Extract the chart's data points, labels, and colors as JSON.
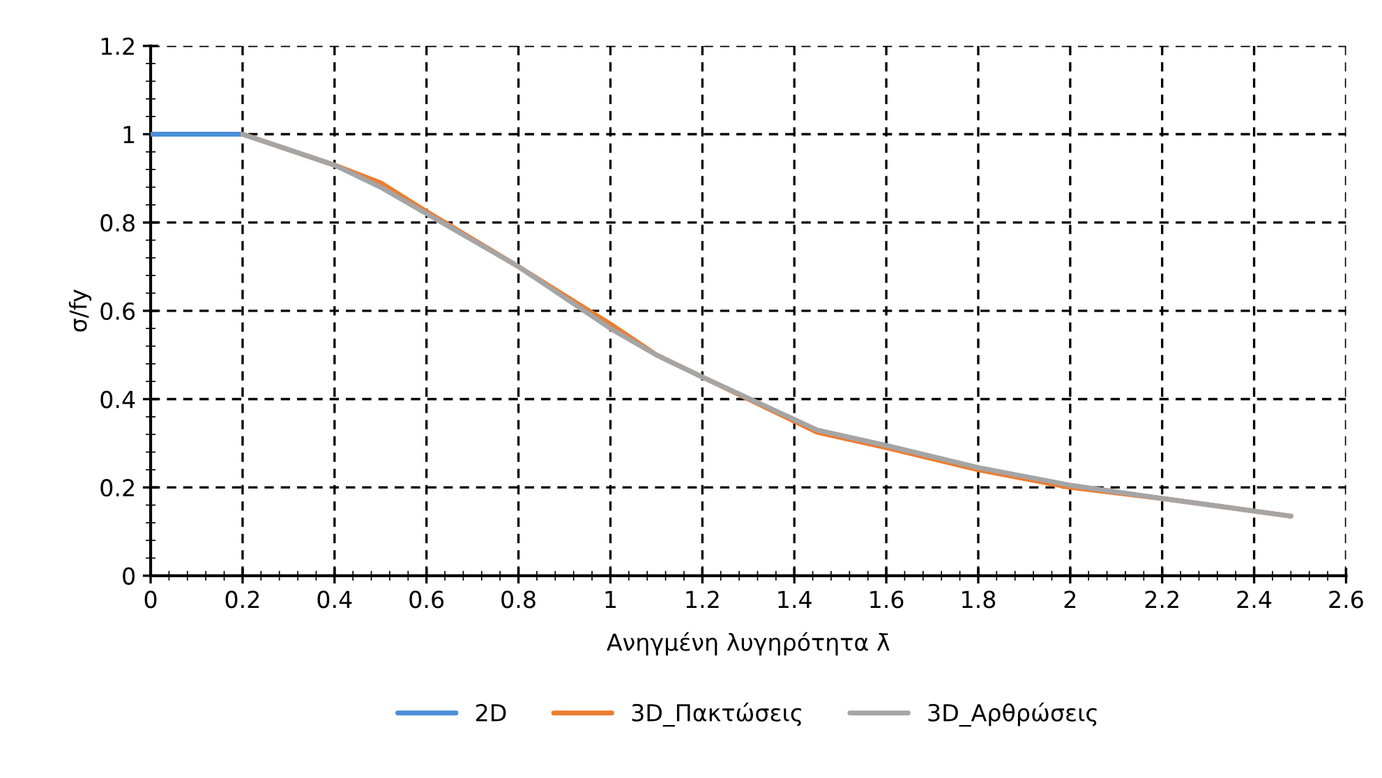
{
  "chart_data": {
    "type": "line",
    "xlabel": "Ανηγμένη λυγηρότητα λ̄",
    "ylabel": "σ/fy",
    "xlim": [
      0,
      2.6
    ],
    "xticks": [
      0,
      0.2,
      0.4,
      0.6,
      0.8,
      1,
      1.2,
      1.4,
      1.6,
      1.8,
      2,
      2.2,
      2.4,
      2.6
    ],
    "ylim": [
      0,
      1.2
    ],
    "yticks": [
      0,
      0.2,
      0.4,
      0.6,
      0.8,
      1,
      1.2
    ],
    "grid": true,
    "line_style": "solid",
    "legend": "bottom",
    "series": [
      {
        "name": "2D",
        "color": "#4a8fd6",
        "x": [
          0,
          0.2
        ],
        "values": [
          1,
          1
        ]
      },
      {
        "name": "3D_Πακτώσεις",
        "color": "#ed7d31",
        "x": [
          0.2,
          0.4,
          0.5,
          0.6,
          0.8,
          1.0,
          1.1,
          1.2,
          1.45,
          1.6,
          1.8,
          2.0,
          2.2,
          2.48
        ],
        "values": [
          1,
          0.93,
          0.89,
          0.825,
          0.7,
          0.57,
          0.5,
          0.45,
          0.325,
          0.29,
          0.24,
          0.2,
          0.175,
          0.135
        ]
      },
      {
        "name": "3D_Αρθρώσεις",
        "color": "#a5a5a5",
        "x": [
          0.2,
          0.4,
          0.5,
          0.6,
          0.8,
          1.0,
          1.1,
          1.2,
          1.45,
          1.6,
          1.8,
          2.0,
          2.2,
          2.48
        ],
        "values": [
          1,
          0.93,
          0.88,
          0.82,
          0.7,
          0.56,
          0.5,
          0.45,
          0.33,
          0.295,
          0.245,
          0.205,
          0.175,
          0.135
        ]
      }
    ]
  }
}
